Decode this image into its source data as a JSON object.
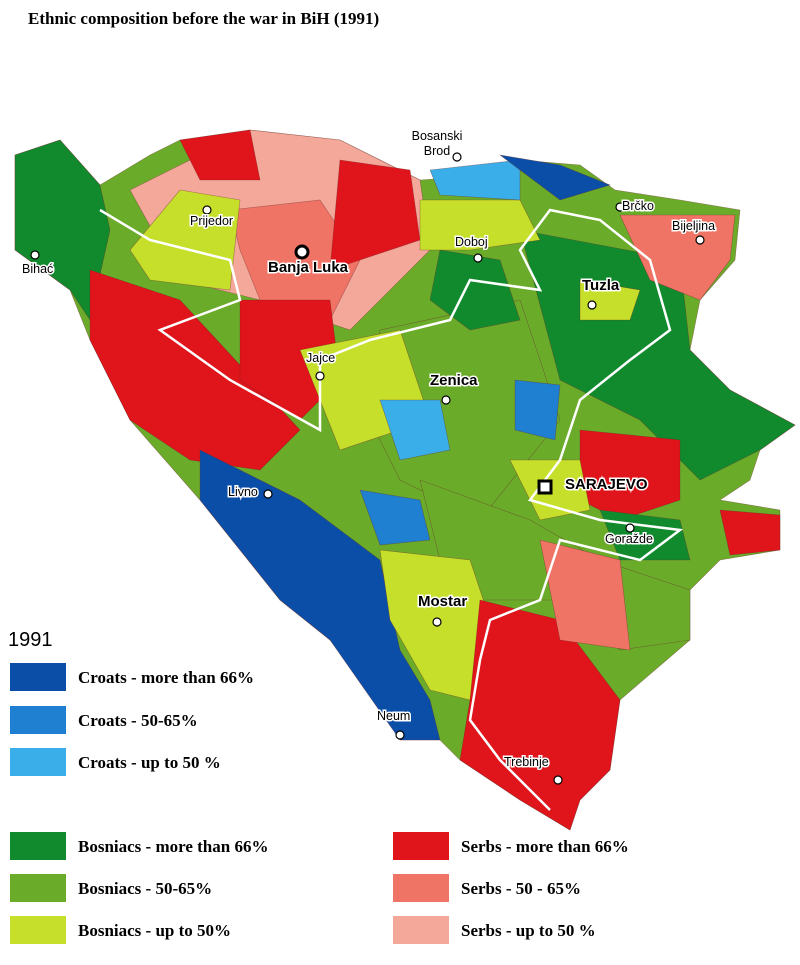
{
  "title": "Ethnic composition before the war in BiH (1991)",
  "year_label": "1991",
  "cities": [
    {
      "lines": [
        "Bosanski",
        "Brod"
      ],
      "bold": false
    },
    {
      "lines": [
        "Brčko"
      ],
      "bold": false
    },
    {
      "lines": [
        "Bijeljina"
      ],
      "bold": false
    },
    {
      "lines": [
        "Prijedor"
      ],
      "bold": false
    },
    {
      "lines": [
        "Banja Luka"
      ],
      "bold": true
    },
    {
      "lines": [
        "Bihać"
      ],
      "bold": false
    },
    {
      "lines": [
        "Doboj"
      ],
      "bold": false
    },
    {
      "lines": [
        "Tuzla"
      ],
      "bold": true
    },
    {
      "lines": [
        "Jajce"
      ],
      "bold": false
    },
    {
      "lines": [
        "Zenica"
      ],
      "bold": true
    },
    {
      "lines": [
        "SARAJEVO"
      ],
      "bold": true
    },
    {
      "lines": [
        "Goražde"
      ],
      "bold": false
    },
    {
      "lines": [
        "Livno"
      ],
      "bold": false
    },
    {
      "lines": [
        "Mostar"
      ],
      "bold": true
    },
    {
      "lines": [
        "Neum"
      ],
      "bold": false
    },
    {
      "lines": [
        "Trebinje"
      ],
      "bold": false
    }
  ],
  "legend": [
    {
      "label": "Croats - more than 66%",
      "color": "#0b4ea8"
    },
    {
      "label": "Croats - 50-65%",
      "color": "#1f7fd0"
    },
    {
      "label": "Croats - up to 50 %",
      "color": "#3aaee8"
    },
    {
      "label": "Bosniacs  - more than 66%",
      "color": "#118a2e"
    },
    {
      "label": "Bosniacs  - 50-65%",
      "color": "#6aac2a"
    },
    {
      "label": "Bosniacs  - up to 50%",
      "color": "#c6df2a"
    },
    {
      "label": "Serbs - more than 66%",
      "color": "#e0141b"
    },
    {
      "label": "Serbs - 50 - 65%",
      "color": "#ef7466"
    },
    {
      "label": "Serbs - up to 50 %",
      "color": "#f4a89a"
    }
  ]
}
